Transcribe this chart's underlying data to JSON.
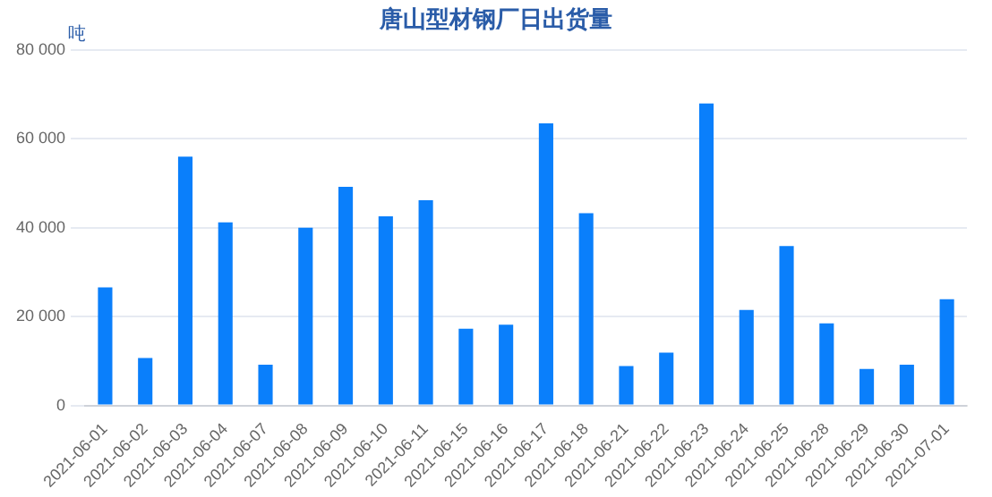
{
  "chart_data": {
    "type": "bar",
    "title": "唐山型材钢厂日出货量",
    "ylabel": "吨",
    "categories": [
      "2021-06-01",
      "2021-06-02",
      "2021-06-03",
      "2021-06-04",
      "2021-06-07",
      "2021-06-08",
      "2021-06-09",
      "2021-06-10",
      "2021-06-11",
      "2021-06-15",
      "2021-06-16",
      "2021-06-17",
      "2021-06-18",
      "2021-06-21",
      "2021-06-22",
      "2021-06-23",
      "2021-06-24",
      "2021-06-25",
      "2021-06-28",
      "2021-06-29",
      "2021-06-30",
      "2021-07-01"
    ],
    "values": [
      26600,
      10700,
      56000,
      41200,
      9200,
      40000,
      49200,
      42600,
      46200,
      17300,
      18200,
      63500,
      43300,
      8900,
      11900,
      68000,
      21500,
      35900,
      18500,
      8200,
      9200,
      23900
    ],
    "color": "#0a7ffb",
    "ylim": [
      0,
      80000
    ],
    "yticks": [
      0,
      {
        "value": 20000,
        "label": "20 000"
      },
      {
        "value": 40000,
        "label": "40 000"
      },
      {
        "value": 60000,
        "label": "60 000"
      },
      {
        "value": 80000,
        "label": "80 000"
      }
    ],
    "grid": "y"
  }
}
